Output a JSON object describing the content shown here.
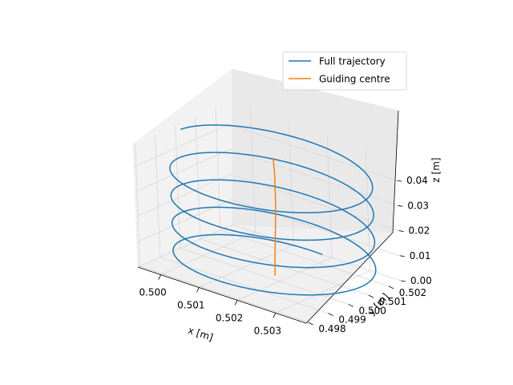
{
  "chart_data": {
    "type": "line",
    "projection": "3d",
    "title": "",
    "xlabel": "x [m]",
    "ylabel": "y [m]",
    "zlabel": "z [m]",
    "xticks": [
      "0.500",
      "0.501",
      "0.502",
      "0.503"
    ],
    "yticks": [
      "0.498",
      "0.499",
      "0.500",
      "0.501",
      "0.502"
    ],
    "zticks": [
      "0.00",
      "0.01",
      "0.02",
      "0.03",
      "0.04"
    ],
    "xlim": [
      0.4994,
      0.5038
    ],
    "ylim": [
      0.4979,
      0.5026
    ],
    "zlim": [
      0.0,
      0.049
    ],
    "grid": true,
    "legend_position": "top-right",
    "series": [
      {
        "name": "Full trajectory",
        "color": "#1f77b4",
        "kind": "helix",
        "center_x": 0.50175,
        "center_y": 0.50025,
        "radius": 0.00235,
        "z_start": 0.0,
        "z_end": 0.0465,
        "turns": 4.25
      },
      {
        "name": "Guiding centre",
        "color": "#ff7f0e",
        "kind": "polyline",
        "points": [
          {
            "x": 0.50175,
            "y": 0.50025,
            "z": 0.0
          },
          {
            "x": 0.50175,
            "y": 0.5003,
            "z": 0.01
          },
          {
            "x": 0.50176,
            "y": 0.50035,
            "z": 0.02
          },
          {
            "x": 0.50176,
            "y": 0.5004,
            "z": 0.03
          },
          {
            "x": 0.50175,
            "y": 0.50042,
            "z": 0.04
          },
          {
            "x": 0.50174,
            "y": 0.5004,
            "z": 0.0465
          }
        ]
      }
    ]
  }
}
